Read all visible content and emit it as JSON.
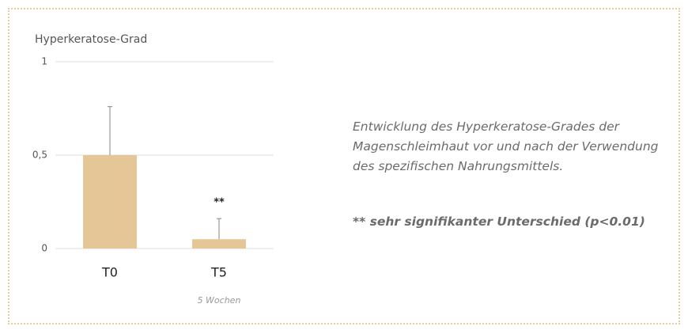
{
  "chart_data": {
    "type": "bar",
    "y_label": "Hyperkeratose-Grad",
    "categories": [
      "T0",
      "T5"
    ],
    "values": [
      0.5,
      0.05
    ],
    "errors": [
      0.26,
      0.11
    ],
    "significance_labels": [
      null,
      "**"
    ],
    "category_notes": [
      null,
      "5 Wochen"
    ],
    "color": "#e5c797",
    "error_color": "#999999",
    "ylim": [
      0,
      1
    ],
    "yticks": [
      0,
      {
        "value": 0.5,
        "label": "0,5"
      },
      1
    ],
    "grid": true
  },
  "caption": "Entwicklung des Hyperkeratose-Grades der Magenschleimhaut vor und nach der Verwendung des spezifischen Nahrungsmittels.",
  "note": "** sehr signifikanter Unterschied (p<0.01)"
}
